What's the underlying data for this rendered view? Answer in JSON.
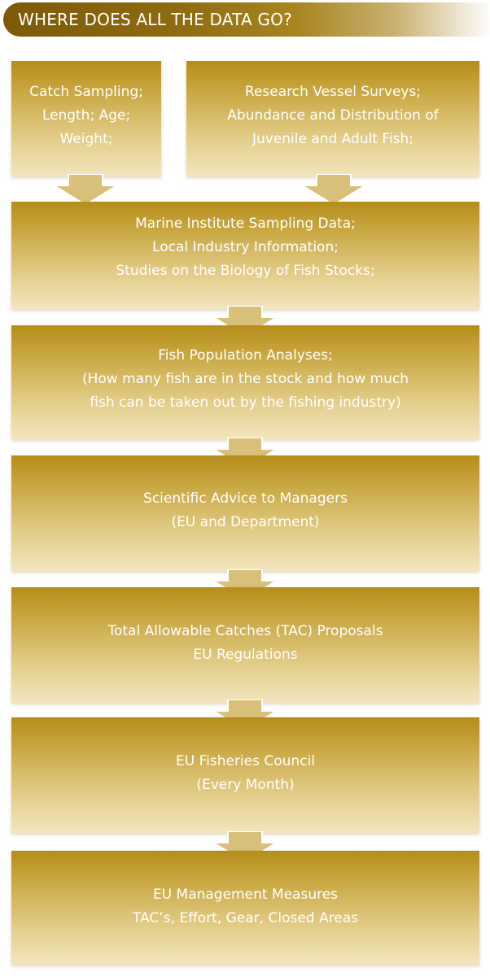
{
  "header": {
    "title": "WHERE DOES ALL THE DATA GO?"
  },
  "flow": {
    "catch_sampling": "Catch Sampling;\nLength; Age;\nWeight;",
    "research_surveys": "Research Vessel Surveys;\nAbundance and Distribution of\nJuvenile and Adult Fish;",
    "sampling_data": "Marine Institute Sampling Data;\nLocal Industry Information;\nStudies on the Biology of Fish Stocks;",
    "population_analyses": "Fish Population Analyses;\n(How many fish are in the stock and how much\nfish can be taken out by the fishing industry)",
    "scientific_advice": "Scientific Advice to Managers\n(EU and Department)",
    "tac_proposals": "Total Allowable Catches (TAC) Proposals\nEU Regulations",
    "fisheries_council": "EU Fisheries Council\n(Every Month)",
    "management_measures": "EU Management Measures\nTAC’s, Effort, Gear, Closed Areas"
  }
}
